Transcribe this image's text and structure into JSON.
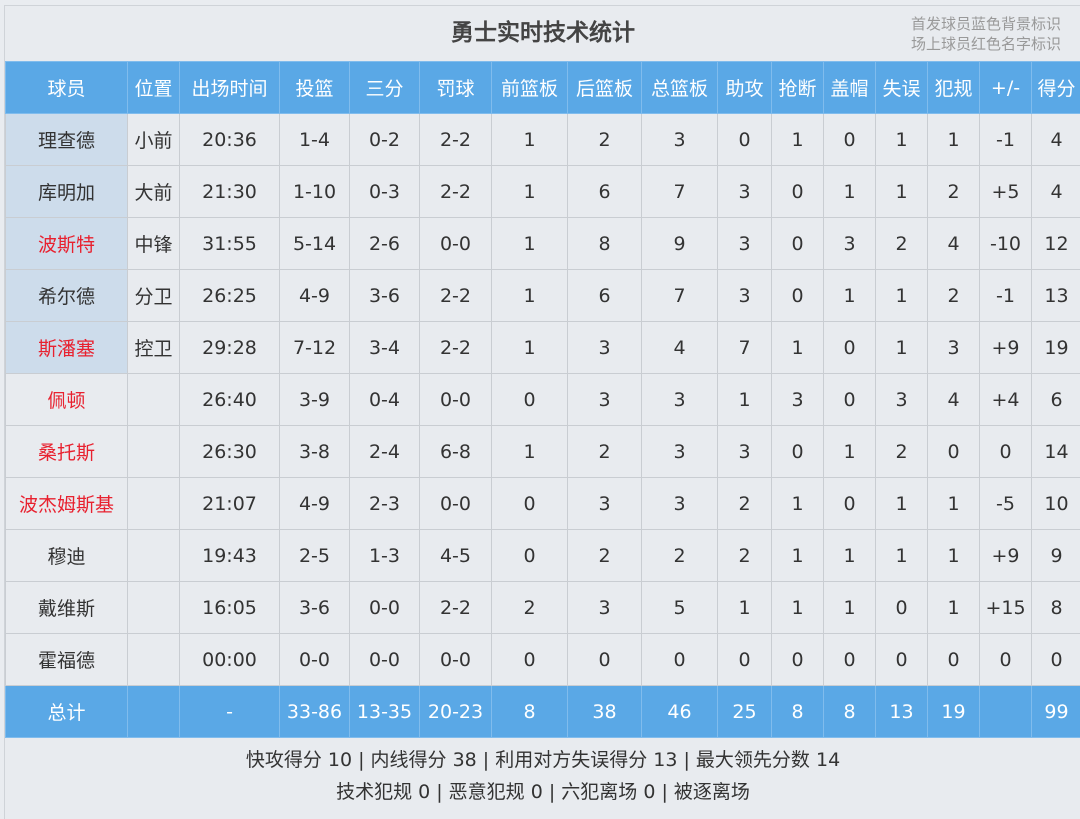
{
  "title": "勇士实时技术统计",
  "legend": [
    "首发球员蓝色背景标识",
    "场上球员红色名字标识"
  ],
  "colors": {
    "header": "#5aa8e6",
    "starter_bg": "#cddceb",
    "on_court_name": "#e8212f"
  },
  "columns": [
    "球员",
    "位置",
    "出场时间",
    "投篮",
    "三分",
    "罚球",
    "前篮板",
    "后篮板",
    "总篮板",
    "助攻",
    "抢断",
    "盖帽",
    "失误",
    "犯规",
    "+/-",
    "得分"
  ],
  "rows": [
    {
      "starter": true,
      "on_court": false,
      "cells": [
        "理查德",
        "小前",
        "20:36",
        "1-4",
        "0-2",
        "2-2",
        "1",
        "2",
        "3",
        "0",
        "1",
        "0",
        "1",
        "1",
        "-1",
        "4"
      ]
    },
    {
      "starter": true,
      "on_court": false,
      "cells": [
        "库明加",
        "大前",
        "21:30",
        "1-10",
        "0-3",
        "2-2",
        "1",
        "6",
        "7",
        "3",
        "0",
        "1",
        "1",
        "2",
        "+5",
        "4"
      ]
    },
    {
      "starter": true,
      "on_court": true,
      "cells": [
        "波斯特",
        "中锋",
        "31:55",
        "5-14",
        "2-6",
        "0-0",
        "1",
        "8",
        "9",
        "3",
        "0",
        "3",
        "2",
        "4",
        "-10",
        "12"
      ]
    },
    {
      "starter": true,
      "on_court": false,
      "cells": [
        "希尔德",
        "分卫",
        "26:25",
        "4-9",
        "3-6",
        "2-2",
        "1",
        "6",
        "7",
        "3",
        "0",
        "1",
        "1",
        "2",
        "-1",
        "13"
      ]
    },
    {
      "starter": true,
      "on_court": true,
      "cells": [
        "斯潘塞",
        "控卫",
        "29:28",
        "7-12",
        "3-4",
        "2-2",
        "1",
        "3",
        "4",
        "7",
        "1",
        "0",
        "1",
        "3",
        "+9",
        "19"
      ]
    },
    {
      "starter": false,
      "on_court": true,
      "cells": [
        "佩顿",
        "",
        "26:40",
        "3-9",
        "0-4",
        "0-0",
        "0",
        "3",
        "3",
        "1",
        "3",
        "0",
        "3",
        "4",
        "+4",
        "6"
      ]
    },
    {
      "starter": false,
      "on_court": true,
      "cells": [
        "桑托斯",
        "",
        "26:30",
        "3-8",
        "2-4",
        "6-8",
        "1",
        "2",
        "3",
        "3",
        "0",
        "1",
        "2",
        "0",
        "0",
        "14"
      ]
    },
    {
      "starter": false,
      "on_court": true,
      "cells": [
        "波杰姆斯基",
        "",
        "21:07",
        "4-9",
        "2-3",
        "0-0",
        "0",
        "3",
        "3",
        "2",
        "1",
        "0",
        "1",
        "1",
        "-5",
        "10"
      ]
    },
    {
      "starter": false,
      "on_court": false,
      "cells": [
        "穆迪",
        "",
        "19:43",
        "2-5",
        "1-3",
        "4-5",
        "0",
        "2",
        "2",
        "2",
        "1",
        "1",
        "1",
        "1",
        "+9",
        "9"
      ]
    },
    {
      "starter": false,
      "on_court": false,
      "cells": [
        "戴维斯",
        "",
        "16:05",
        "3-6",
        "0-0",
        "2-2",
        "2",
        "3",
        "5",
        "1",
        "1",
        "1",
        "0",
        "1",
        "+15",
        "8"
      ]
    },
    {
      "starter": false,
      "on_court": false,
      "cells": [
        "霍福德",
        "",
        "00:00",
        "0-0",
        "0-0",
        "0-0",
        "0",
        "0",
        "0",
        "0",
        "0",
        "0",
        "0",
        "0",
        "0",
        "0"
      ]
    }
  ],
  "totals": [
    "总计",
    "",
    "-",
    "33-86",
    "13-35",
    "20-23",
    "8",
    "38",
    "46",
    "25",
    "8",
    "8",
    "13",
    "19",
    "",
    "99"
  ],
  "footer": [
    "快攻得分 10 | 内线得分 38 | 利用对方失误得分 13 | 最大领先分数 14",
    "技术犯规 0 | 恶意犯规 0 | 六犯离场 0 | 被逐离场"
  ]
}
